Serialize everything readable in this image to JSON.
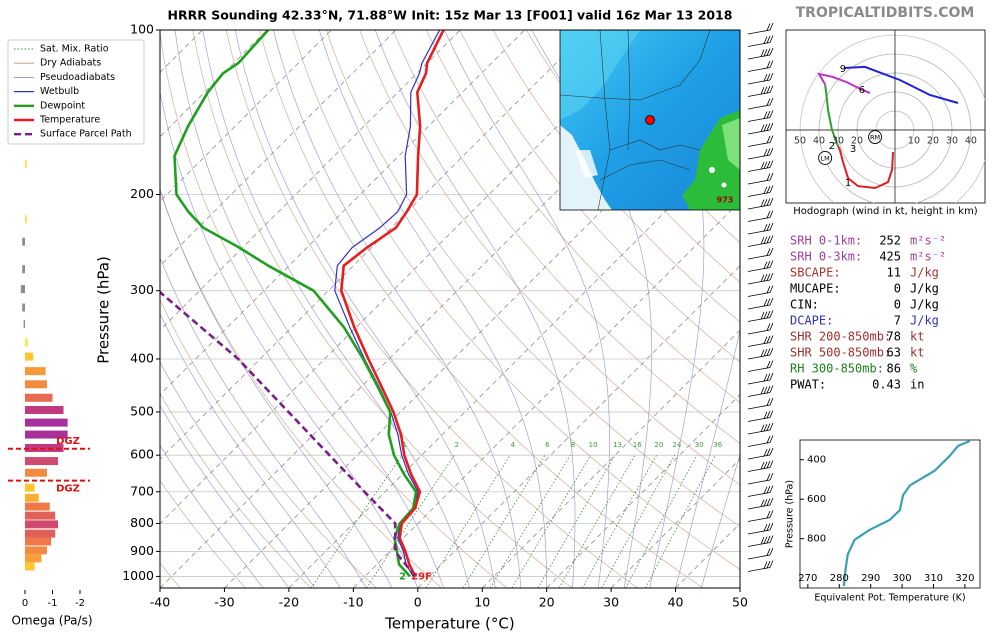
{
  "title": "HRRR Sounding 42.33°N, 71.88°W Init: 15z Mar 13 [F001] valid 16z Mar 13 2018",
  "watermark": "TROPICALTIDBITS.COM",
  "map": {
    "label": "973"
  },
  "parameters": [
    {
      "label": "SRH 0-1km:",
      "value": 252,
      "unit": "m²s⁻²",
      "color": "#a040a0"
    },
    {
      "label": "SRH 0-3km:",
      "value": 425,
      "unit": "m²s⁻²",
      "color": "#a040a0"
    },
    {
      "label": "SBCAPE:",
      "value": 11,
      "unit": "J/kg",
      "color": "#b03030"
    },
    {
      "label": "MUCAPE:",
      "value": 0,
      "unit": "J/kg",
      "color": "#000000"
    },
    {
      "label": "CIN:",
      "value": 0,
      "unit": "J/kg",
      "color": "#000000"
    },
    {
      "label": "DCAPE:",
      "value": 7,
      "unit": "J/kg",
      "color": "#3030c0"
    },
    {
      "label": "SHR 200-850mb:",
      "value": 78,
      "unit": "kt",
      "color": "#a03030"
    },
    {
      "label": "SHR 500-850mb:",
      "value": 63,
      "unit": "kt",
      "color": "#a03030"
    },
    {
      "label": "RH 300-850mb:",
      "value": 86,
      "unit": "%",
      "color": "#208020"
    },
    {
      "label": "PWAT:",
      "value": 0.43,
      "unit": "in",
      "color": "#000000"
    }
  ],
  "chart_data": [
    {
      "type": "skewt",
      "xlabel": "Temperature (°C)",
      "ylabel": "Pressure (hPa)",
      "xlim": [
        -40,
        50
      ],
      "ylim": [
        1050,
        100
      ],
      "log_y": true,
      "skew": 1,
      "xticks": [
        -40,
        -30,
        -20,
        -10,
        0,
        10,
        20,
        30,
        40,
        50
      ],
      "yticks": [
        100,
        200,
        300,
        400,
        500,
        600,
        700,
        800,
        900,
        1000
      ],
      "background_lines": [
        {
          "name": "Sat. Mix. Ratio",
          "color": "#3a8a3a",
          "dash": "1.5,2"
        },
        {
          "name": "Dry Adiabats",
          "color": "#c89070",
          "dash": "none"
        },
        {
          "name": "Pseudoadiabats",
          "color": "#8a8ad0",
          "dash": "none"
        }
      ],
      "mixing_ratios": [
        1,
        2,
        4,
        6,
        8,
        10,
        13,
        16,
        20,
        24,
        30,
        36
      ],
      "levels": [
        1000,
        950,
        900,
        850,
        800,
        750,
        700,
        650,
        600,
        550,
        500,
        450,
        400,
        350,
        300,
        270,
        250,
        230,
        215,
        200,
        170,
        150,
        130,
        120,
        115,
        100
      ],
      "series": [
        {
          "name": "Wetbulb",
          "color": "#3030d0",
          "width": 1.2,
          "dash": "none",
          "values": [
            -2.5,
            -5.5,
            -7.9,
            -10.9,
            -12.7,
            -13,
            -14.9,
            -19.1,
            -23.1,
            -26.9,
            -31.5,
            -37.2,
            -43.8,
            -51,
            -59,
            -62.5,
            -63,
            -61.8,
            -61.5,
            -62.8,
            -69,
            -72.8,
            -78,
            -79.6,
            -80.8,
            -83.2
          ]
        },
        {
          "name": "Dewpoint",
          "color": "#1ea01e",
          "width": 2.6,
          "dash": "none",
          "values": [
            -3,
            -6.6,
            -8.9,
            -11.4,
            -12.8,
            -13.1,
            -15.2,
            -19.8,
            -24.3,
            -28.3,
            -31.6,
            -37.4,
            -44,
            -51.9,
            -62.3,
            -73.2,
            -80.6,
            -89.2,
            -94,
            -98.5,
            -104.8,
            -107.3,
            -109.5,
            -110.1,
            -109.3,
            -109.8
          ]
        },
        {
          "name": "Temperature",
          "color": "#e81e1e",
          "width": 2.6,
          "dash": "none",
          "values": [
            -2.2,
            -5,
            -7.6,
            -10.6,
            -12.5,
            -12.8,
            -14.6,
            -18.7,
            -22.7,
            -26.4,
            -31.1,
            -36.8,
            -43.2,
            -50.3,
            -58,
            -61.5,
            -60.7,
            -59.3,
            -60.1,
            -61.2,
            -67,
            -71.3,
            -77,
            -78.6,
            -80,
            -82.6
          ]
        },
        {
          "name": "Surface Parcel Path",
          "color": "#7b1e8a",
          "width": 2.6,
          "dash": "7,4",
          "levels": [
            1000,
            900,
            800,
            700,
            600,
            500,
            400,
            300
          ],
          "values": [
            -2.2,
            -9.2,
            -13.5,
            -23.2,
            -34.3,
            -47.4,
            -63.4,
            -86.4
          ]
        }
      ],
      "surface_labels": [
        {
          "text": "2",
          "color": "#1ea01e"
        },
        {
          "text": "29F",
          "color": "#e81e1e"
        }
      ]
    },
    {
      "type": "omega",
      "xlabel": "Omega (Pa/s)",
      "xlim": [
        0.5,
        -2.5
      ],
      "ylim": [
        1050,
        100
      ],
      "xticks": [
        0,
        -1,
        -2
      ],
      "pressure": [
        176,
        222,
        244,
        274,
        298,
        322,
        345,
        373,
        396,
        421,
        445,
        471,
        496,
        523,
        550,
        582,
        615,
        646,
        688,
        718,
        745,
        774,
        803,
        835,
        863,
        896,
        927,
        959
      ],
      "values": [
        -0.07,
        -0.07,
        0.1,
        0.1,
        0.15,
        0.1,
        0.05,
        -0.1,
        -0.3,
        -0.75,
        -0.8,
        -1.0,
        -1.4,
        -1.55,
        -1.55,
        -1.4,
        -1.2,
        -0.8,
        -0.35,
        -0.5,
        -0.9,
        -1.1,
        -1.2,
        -1.1,
        -0.95,
        -0.8,
        -0.6,
        -0.35
      ],
      "colors": [
        "#ffe24a",
        "#ffe24a",
        "#8c8c8c",
        "#8c8c8c",
        "#8c8c8c",
        "#8c8c8c",
        "#8c8c8c",
        "#ffe24a",
        "#ffc630",
        "#f79a3a",
        "#f28a40",
        "#e86a50",
        "#c03a80",
        "#a8309a",
        "#a8309a",
        "#c03a80",
        "#d04a70",
        "#f28a40",
        "#ffc630",
        "#fbb035",
        "#ee7848",
        "#e0605a",
        "#d04a70",
        "#e0605a",
        "#ee7848",
        "#f28a40",
        "#f7a03a",
        "#ffc630"
      ],
      "dgz": {
        "label": "DGZ",
        "pressures": [
          584,
          668
        ],
        "color": "#e01010"
      }
    },
    {
      "type": "hodograph",
      "caption": "Hodograph (wind in kt, height in km)",
      "xlim": [
        -57.4,
        47.4
      ],
      "ylim": [
        -38.4,
        52.6
      ],
      "ticks": [
        {
          "value": -50,
          "label": "50"
        },
        {
          "value": -40,
          "label": "40"
        },
        {
          "value": -30,
          "label": "30"
        },
        {
          "value": -20,
          "label": "20"
        },
        10,
        20,
        30,
        40
      ],
      "segments": [
        {
          "color": "#e02020",
          "u": [
            -1,
            -1.6,
            -3.7,
            -10.5,
            -19.5,
            -24.7,
            -27.4,
            -29,
            -30
          ],
          "v": [
            -11.6,
            -21,
            -27.4,
            -30.5,
            -29.5,
            -25.3,
            -16.8,
            -10.5,
            -8.4
          ]
        },
        {
          "color": "#2ca02c",
          "u": [
            -30,
            -33.2,
            -35.3,
            -36.3,
            -36.8
          ],
          "v": [
            -8.4,
            0,
            10.5,
            20,
            24
          ]
        },
        {
          "color": "#c030c0",
          "u": [
            -36.8,
            -40,
            -33,
            -25,
            -17,
            -13.2
          ],
          "v": [
            24,
            29.5,
            28,
            25,
            21,
            19.5
          ]
        },
        {
          "color": "#2020e0",
          "u": [
            -27,
            -15.8,
            2.6,
            18.4,
            33.2
          ],
          "v": [
            32.6,
            33.2,
            26.3,
            18.4,
            14.2
          ]
        }
      ],
      "height_labels": [
        {
          "label": "1",
          "u": -24.7,
          "v": -27.9
        },
        {
          "label": "2",
          "u": -33.2,
          "v": -8.4
        },
        {
          "label": "3",
          "u": -22.1,
          "v": -10
        },
        {
          "label": "6",
          "u": -17.4,
          "v": 21
        },
        {
          "label": "9",
          "u": -27.4,
          "v": 32.1
        }
      ],
      "storm_motion": [
        {
          "label": "RM",
          "u": -10.5,
          "v": -3.7
        },
        {
          "label": "LM",
          "u": -36.8,
          "v": -14.7
        }
      ]
    },
    {
      "type": "line",
      "xlabel": "Equivalent Pot. Temperature (K)",
      "ylabel": "Pressure (hPa)",
      "xlim": [
        267.5,
        324.8
      ],
      "ylim": [
        1050,
        300
      ],
      "xticks": [
        270,
        280,
        290,
        300,
        310,
        320
      ],
      "yticks": [
        400,
        600,
        800
      ],
      "color": "#3a9fb5",
      "pressure": [
        1040,
        980,
        880,
        805,
        755,
        705,
        655,
        580,
        530,
        455,
        380,
        330,
        305
      ],
      "values": [
        281.5,
        281.8,
        282.7,
        284.9,
        289.7,
        296.1,
        299.3,
        300.3,
        302.5,
        310.4,
        315.2,
        317.8,
        321.6
      ]
    }
  ]
}
